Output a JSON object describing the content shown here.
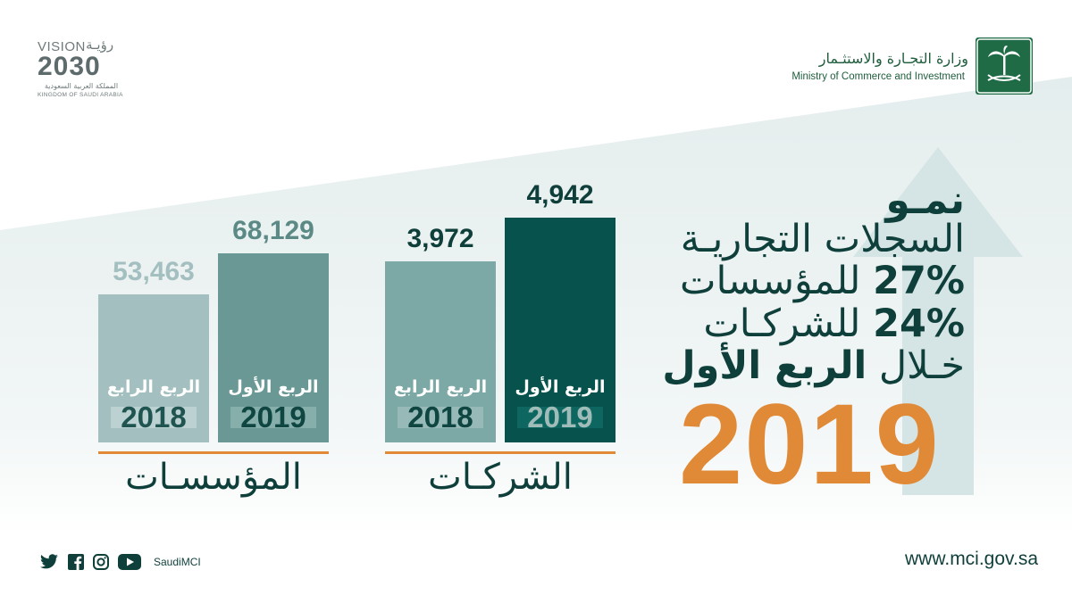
{
  "vision_logo": {
    "word_en": "VISION",
    "word_ar": "رؤيـة",
    "year": "2030",
    "kingdom_ar": "المملكة العربية السعودية",
    "kingdom_en": "KINGDOM OF SAUDI ARABIA"
  },
  "ministry": {
    "name_ar": "وزارة التجـارة والاستثـمار",
    "name_en": "Ministry of Commerce and Investment"
  },
  "headline": {
    "line1": "نمـو",
    "line2": "السجلات التجاريـة",
    "line3_pct": "27%",
    "line3_text": "للمؤسسات",
    "line4_pct": "24%",
    "line4_text": "للشركـات",
    "line5_light": "خـلال",
    "line5_bold": "الربع الأول",
    "year": "2019"
  },
  "chart_data": {
    "type": "bar",
    "groups": [
      {
        "name": "المؤسسـات",
        "bars": [
          {
            "quarter": "الربع الرابع",
            "year": "2018",
            "value": 53463,
            "value_label": "53,463",
            "color": "#a3bfbf",
            "value_color": "#a3bfbf",
            "year_color": "#1f5450",
            "band_color": "#bcd2d2"
          },
          {
            "quarter": "الربع الأول",
            "year": "2019",
            "value": 68129,
            "value_label": "68,129",
            "color": "#6a9995",
            "value_color": "#5b8985",
            "year_color": "#0f4641",
            "band_color": "#86aeab"
          }
        ]
      },
      {
        "name": "الشركـات",
        "bars": [
          {
            "quarter": "الربع الرابع",
            "year": "2018",
            "value": 3972,
            "value_label": "3,972",
            "color": "#7ca8a6",
            "value_color": "#0f3f3a",
            "year_color": "#0f4641",
            "band_color": "#97bab8"
          },
          {
            "quarter": "الربع الأول",
            "year": "2019",
            "value": 4942,
            "value_label": "4,942",
            "color": "#07524c",
            "value_color": "#0f3f3a",
            "year_color": "#9fbcb9",
            "band_color": "#0d6660"
          }
        ]
      }
    ]
  },
  "footer": {
    "social_handle": "SaudiMCI",
    "website": "www.mci.gov.sa",
    "icons": [
      "twitter-icon",
      "facebook-icon",
      "instagram-icon",
      "youtube-icon"
    ]
  },
  "colors": {
    "dark_teal": "#0f3f3a",
    "orange": "#e08a37",
    "arrow": "#d6e5e5",
    "band": "#eef3f3"
  }
}
